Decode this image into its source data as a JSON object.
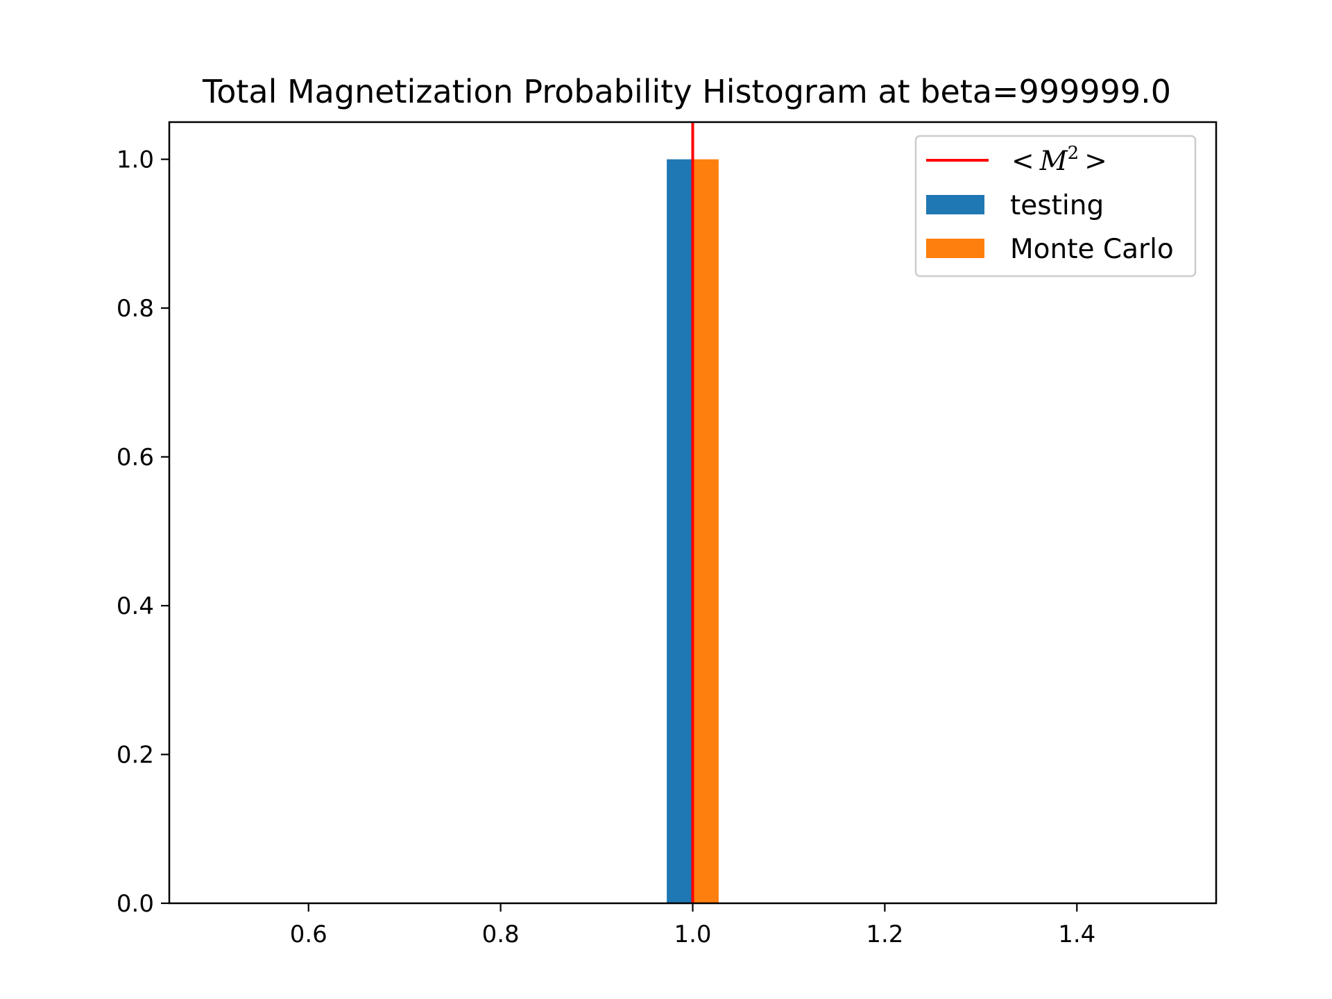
{
  "chart_data": {
    "type": "bar",
    "title": "Total Magnetization Probability Histogram at beta=999999.0",
    "xlabel": "",
    "ylabel": "",
    "xlim": [
      0.455,
      1.545
    ],
    "ylim": [
      0.0,
      1.05
    ],
    "xticks": [
      0.6,
      0.8,
      1.0,
      1.2,
      1.4
    ],
    "xtick_labels": [
      "0.6",
      "0.8",
      "1.0",
      "1.2",
      "1.4"
    ],
    "yticks": [
      0.0,
      0.2,
      0.4,
      0.6,
      0.8,
      1.0
    ],
    "ytick_labels": [
      "0.0",
      "0.2",
      "0.4",
      "0.6",
      "0.8",
      "1.0"
    ],
    "grid": false,
    "legend_position": "top-right",
    "series": [
      {
        "name": "testing",
        "color": "#1f77b4",
        "x_start": 0.973,
        "x_end": 1.0,
        "value": 1.0
      },
      {
        "name": "Monte Carlo",
        "color": "#ff7f0e",
        "x_start": 1.0,
        "x_end": 1.027,
        "value": 1.0
      }
    ],
    "vline": {
      "x": 1.0,
      "color": "#ff0000"
    },
    "legend": {
      "vline_label_left": "<",
      "vline_label_var": "M",
      "vline_label_sup": "2",
      "vline_label_right": ">"
    }
  }
}
